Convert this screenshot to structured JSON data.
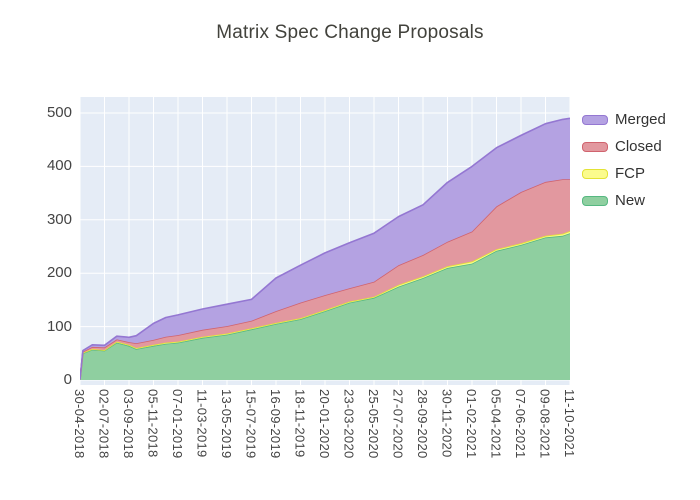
{
  "title": "Matrix Spec Change Proposals",
  "colors": {
    "plot_background": "#e5ecf6",
    "grid": "#ffffff",
    "title_text": "#42423c",
    "tick_text": "#444444",
    "merged_fill": "#b4a2e2",
    "merged_line": "#9477d2",
    "closed_fill": "#e2989f",
    "closed_line": "#d0636e",
    "fcp_fill": "#fbfb8d",
    "fcp_line": "#e3e335",
    "new_fill": "#8fcfa0",
    "new_line": "#56b881"
  },
  "chart_data": {
    "type": "area",
    "stacked": true,
    "title": "Matrix Spec Change Proposals",
    "xlabel": "",
    "ylabel": "",
    "ylim": [
      0,
      500
    ],
    "yticks": [
      0,
      100,
      200,
      300,
      400,
      500
    ],
    "grid": true,
    "legend_position": "right",
    "legend_order": [
      "Merged",
      "Closed",
      "FCP",
      "New"
    ],
    "categories": [
      "30-04-2018",
      "02-07-2018",
      "03-09-2018",
      "05-11-2018",
      "07-01-2019",
      "11-03-2019",
      "13-05-2019",
      "15-07-2019",
      "16-09-2019",
      "18-11-2019",
      "20-01-2020",
      "23-03-2020",
      "25-05-2020",
      "27-07-2020",
      "28-09-2020",
      "30-11-2020",
      "01-02-2021",
      "05-04-2021",
      "07-06-2021",
      "09-08-2021",
      "11-10-2021"
    ],
    "sample_x": [
      0,
      0.12,
      0.5,
      1,
      1.5,
      2,
      2.3,
      3,
      3.5,
      4,
      5,
      6,
      7,
      8,
      9,
      10,
      11,
      12,
      13,
      14,
      15,
      16,
      17,
      18,
      19,
      19.7,
      20
    ],
    "series": [
      {
        "name": "New",
        "fill": "#8fcfa0",
        "line": "#56b881",
        "values": [
          1,
          50,
          57,
          55,
          70,
          64,
          58,
          64,
          68,
          70,
          79,
          85,
          95,
          105,
          114,
          129,
          145,
          154,
          175,
          191,
          210,
          218,
          242,
          253,
          267,
          270,
          275
        ]
      },
      {
        "name": "FCP",
        "fill": "#fbfb8d",
        "line": "#e3e335",
        "values": [
          0,
          1,
          1,
          1,
          2,
          2,
          2,
          2,
          2,
          2,
          2,
          2,
          2,
          2,
          2,
          2,
          2,
          2,
          3,
          3,
          3,
          4,
          3,
          3,
          3,
          4,
          4
        ]
      },
      {
        "name": "Closed",
        "fill": "#e2989f",
        "line": "#d0636e",
        "values": [
          0,
          2,
          4,
          5,
          4,
          5,
          9,
          9,
          11,
          12,
          13,
          14,
          14,
          22,
          29,
          28,
          25,
          28,
          37,
          40,
          46,
          56,
          80,
          96,
          101,
          102,
          97
        ]
      },
      {
        "name": "Merged",
        "fill": "#b4a2e2",
        "line": "#9477d2",
        "values": [
          0,
          2,
          4,
          4,
          6,
          9,
          14,
          31,
          36,
          38,
          39,
          41,
          40,
          62,
          70,
          79,
          85,
          91,
          91,
          94,
          111,
          122,
          110,
          106,
          109,
          112,
          114
        ]
      }
    ]
  }
}
